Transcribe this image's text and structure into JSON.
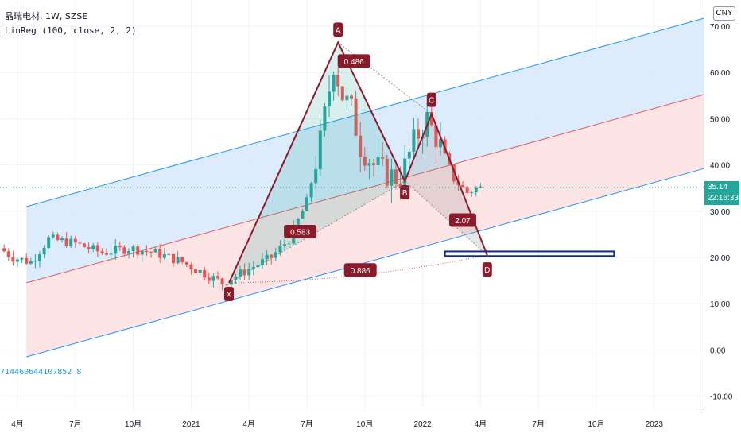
{
  "header": {
    "symbol_line": "晶瑞电材, 1W, SZSE",
    "indicator_line": "LinReg (100, close, 2, 2)"
  },
  "currency_badge": "CNY",
  "last_price": {
    "value": "35.14",
    "countdown": "22:16:33"
  },
  "stray_label": "714460644107852 8",
  "colors": {
    "up": "#26a69a",
    "down": "#ef5350",
    "upper_band": "#2196f3",
    "mid_line": "#e55a5a",
    "lower_band": "#2196f3",
    "upper_fill": "#d6e9fb",
    "lower_fill": "#fde1e1",
    "pattern": "#8b1a2b",
    "target_box": "#0d2a8c"
  },
  "chart_data": {
    "type": "candlestick",
    "title": "",
    "y_axis": {
      "ticks": [
        -10,
        0,
        10,
        20,
        30,
        40,
        50,
        60,
        70
      ],
      "tick_labels": [
        "-10.00",
        "0.00",
        "10.00",
        "20.00",
        "30.00",
        "40.00",
        "50.00",
        "60.00",
        "70.00"
      ]
    },
    "x_axis": {
      "ticks": [
        {
          "label": "4月",
          "t": 0
        },
        {
          "label": "7月",
          "t": 13
        },
        {
          "label": "10月",
          "t": 26
        },
        {
          "label": "2021",
          "t": 39
        },
        {
          "label": "4月",
          "t": 52
        },
        {
          "label": "7月",
          "t": 65
        },
        {
          "label": "10月",
          "t": 78
        },
        {
          "label": "2022",
          "t": 91
        },
        {
          "label": "4月",
          "t": 104
        },
        {
          "label": "7月",
          "t": 117
        },
        {
          "label": "10月",
          "t": 130
        },
        {
          "label": "2023",
          "t": 143
        }
      ]
    },
    "candles": [],
    "linreg": {
      "t_start": 2,
      "t_end": 159,
      "mid_start": 14.5,
      "mid_end": 56.5,
      "upper_start": 31.0,
      "upper_end": 73.0,
      "lower_start": -1.5,
      "lower_end": 40.5
    },
    "harmonic": {
      "points": [
        {
          "label": "X",
          "t": 47.5,
          "y": 14.5
        },
        {
          "label": "A",
          "t": 72.0,
          "y": 66.5
        },
        {
          "label": "B",
          "t": 87.0,
          "y": 36.5
        },
        {
          "label": "C",
          "t": 93.0,
          "y": 51.0
        },
        {
          "label": "D",
          "t": 105.5,
          "y": 20.5
        }
      ],
      "ratios": [
        {
          "label": "0.486",
          "between": "AC"
        },
        {
          "label": "0.583",
          "between": "XB"
        },
        {
          "label": "2.07",
          "between": "BD"
        },
        {
          "label": "0.886",
          "between": "XD"
        }
      ]
    },
    "target_zone": {
      "t_start": 96,
      "t_end": 134,
      "y_low": 20.3,
      "y_high": 21.3
    },
    "last_price": 35.14
  }
}
